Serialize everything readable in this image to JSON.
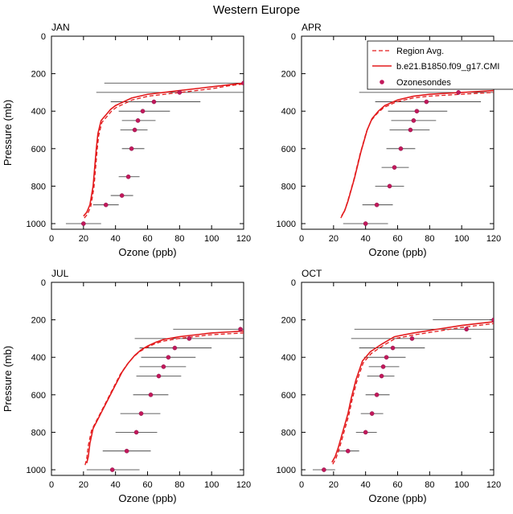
{
  "title": "Western Europe",
  "colors": {
    "model": "#e31a1c",
    "obs_marker": "#c2185b",
    "obs_bar": "#333333"
  },
  "chart_data": [
    {
      "type": "scatter",
      "panel": "JAN",
      "xlabel": "Ozone (ppb)",
      "ylabel": "Pressure (mb)",
      "xlim": [
        0,
        120
      ],
      "ylim": [
        1030,
        0
      ],
      "y_reversed": true,
      "xticks": [
        0,
        20,
        40,
        60,
        80,
        100,
        120
      ],
      "yticks": [
        0,
        200,
        400,
        600,
        800,
        1000
      ],
      "legend": null,
      "model": {
        "x": [
          20,
          22,
          24,
          25,
          26,
          27,
          28,
          29,
          31,
          34,
          37,
          40,
          50,
          60,
          70,
          80,
          90,
          100,
          110,
          120
        ],
        "y": [
          960,
          940,
          900,
          850,
          800,
          700,
          600,
          520,
          450,
          420,
          390,
          370,
          330,
          310,
          300,
          290,
          280,
          270,
          260,
          250
        ]
      },
      "region_avg": {
        "x": [
          20.5,
          22.5,
          24.5,
          25.5,
          26.5,
          27.5,
          28.5,
          29.5,
          31.5,
          34.5,
          37.5,
          40.5,
          50.5,
          60.5,
          70.5,
          80.5,
          90.5,
          100.5,
          110.5,
          120
        ],
        "y": [
          970,
          950,
          910,
          860,
          810,
          710,
          610,
          530,
          460,
          430,
          400,
          380,
          340,
          320,
          310,
          300,
          290,
          280,
          265,
          255
        ]
      },
      "ozonesondes": [
        {
          "p": 1000,
          "x": 20,
          "xmin": 9,
          "xmax": 31
        },
        {
          "p": 900,
          "x": 34,
          "xmin": 26,
          "xmax": 42
        },
        {
          "p": 850,
          "x": 44,
          "xmin": 37,
          "xmax": 51
        },
        {
          "p": 750,
          "x": 48,
          "xmin": 42,
          "xmax": 55
        },
        {
          "p": 600,
          "x": 50,
          "xmin": 44,
          "xmax": 58
        },
        {
          "p": 500,
          "x": 52,
          "xmin": 43,
          "xmax": 60
        },
        {
          "p": 450,
          "x": 54,
          "xmin": 44,
          "xmax": 65
        },
        {
          "p": 400,
          "x": 57,
          "xmin": 42,
          "xmax": 74
        },
        {
          "p": 350,
          "x": 64,
          "xmin": 37,
          "xmax": 93
        },
        {
          "p": 300,
          "x": 80,
          "xmin": 28,
          "xmax": 120
        },
        {
          "p": 250,
          "x": 120,
          "xmin": 33,
          "xmax": 120
        }
      ]
    },
    {
      "type": "scatter",
      "panel": "APR",
      "xlabel": "Ozone (ppb)",
      "ylabel": "",
      "xlim": [
        0,
        120
      ],
      "ylim": [
        1030,
        0
      ],
      "y_reversed": true,
      "xticks": [
        0,
        20,
        40,
        60,
        80,
        100,
        120
      ],
      "yticks": [
        0,
        200,
        400,
        600,
        800,
        1000
      ],
      "legend": {
        "position": "top-right",
        "entries": [
          "Region Avg.",
          "b.e21.B1850.f09_g17.CMI",
          "Ozonesondes"
        ]
      },
      "model": {
        "x": [
          25,
          27,
          29,
          31,
          33,
          35,
          37,
          39,
          41,
          44,
          48,
          52,
          60,
          70,
          80,
          90,
          100,
          110,
          120
        ],
        "y": [
          960,
          930,
          880,
          820,
          760,
          690,
          620,
          560,
          500,
          440,
          400,
          370,
          340,
          320,
          310,
          305,
          300,
          295,
          290
        ]
      },
      "region_avg": {
        "x": [
          24.5,
          26.5,
          28.5,
          30.5,
          32.5,
          34.5,
          36.5,
          38.5,
          40.5,
          43.5,
          47.5,
          51.5,
          59.5,
          69.5,
          79.5,
          89.5,
          99.5,
          109.5,
          120
        ],
        "y": [
          970,
          940,
          890,
          830,
          770,
          700,
          630,
          570,
          510,
          450,
          410,
          380,
          350,
          330,
          320,
          315,
          310,
          305,
          300
        ]
      },
      "ozonesondes": [
        {
          "p": 1000,
          "x": 40,
          "xmin": 26,
          "xmax": 54
        },
        {
          "p": 900,
          "x": 47,
          "xmin": 38,
          "xmax": 57
        },
        {
          "p": 800,
          "x": 55,
          "xmin": 46,
          "xmax": 64
        },
        {
          "p": 700,
          "x": 58,
          "xmin": 50,
          "xmax": 67
        },
        {
          "p": 600,
          "x": 62,
          "xmin": 53,
          "xmax": 71
        },
        {
          "p": 500,
          "x": 68,
          "xmin": 55,
          "xmax": 80
        },
        {
          "p": 450,
          "x": 70,
          "xmin": 56,
          "xmax": 84
        },
        {
          "p": 400,
          "x": 72,
          "xmin": 54,
          "xmax": 91
        },
        {
          "p": 350,
          "x": 78,
          "xmin": 46,
          "xmax": 112
        },
        {
          "p": 300,
          "x": 98,
          "xmin": 36,
          "xmax": 120
        }
      ]
    },
    {
      "type": "scatter",
      "panel": "JUL",
      "xlabel": "Ozone (ppb)",
      "ylabel": "Pressure (mb)",
      "xlim": [
        0,
        120
      ],
      "ylim": [
        1030,
        0
      ],
      "y_reversed": true,
      "xticks": [
        0,
        20,
        40,
        60,
        80,
        100,
        120
      ],
      "yticks": [
        0,
        200,
        400,
        600,
        800,
        1000
      ],
      "legend": null,
      "model": {
        "x": [
          22,
          23,
          24,
          26,
          29,
          32,
          35,
          38,
          41,
          44,
          48,
          52,
          56,
          60,
          65,
          70,
          80,
          90,
          100,
          110,
          120
        ],
        "y": [
          965,
          930,
          860,
          780,
          730,
          680,
          630,
          580,
          530,
          480,
          430,
          390,
          360,
          340,
          320,
          305,
          290,
          280,
          270,
          265,
          260
        ]
      },
      "region_avg": {
        "x": [
          21,
          22,
          23,
          25,
          28,
          31,
          34,
          37,
          40,
          43,
          47,
          51,
          55,
          59,
          64,
          69,
          79,
          89,
          99,
          109,
          120
        ],
        "y": [
          975,
          940,
          870,
          790,
          740,
          690,
          640,
          590,
          540,
          490,
          440,
          400,
          370,
          350,
          330,
          315,
          300,
          290,
          280,
          275,
          270
        ]
      },
      "ozonesondes": [
        {
          "p": 1000,
          "x": 38,
          "xmin": 22,
          "xmax": 55
        },
        {
          "p": 900,
          "x": 47,
          "xmin": 32,
          "xmax": 62
        },
        {
          "p": 800,
          "x": 53,
          "xmin": 40,
          "xmax": 66
        },
        {
          "p": 700,
          "x": 56,
          "xmin": 43,
          "xmax": 68
        },
        {
          "p": 600,
          "x": 62,
          "xmin": 51,
          "xmax": 73
        },
        {
          "p": 500,
          "x": 67,
          "xmin": 53,
          "xmax": 81
        },
        {
          "p": 450,
          "x": 70,
          "xmin": 55,
          "xmax": 84
        },
        {
          "p": 400,
          "x": 73,
          "xmin": 56,
          "xmax": 90
        },
        {
          "p": 350,
          "x": 77,
          "xmin": 55,
          "xmax": 100
        },
        {
          "p": 300,
          "x": 86,
          "xmin": 52,
          "xmax": 120
        },
        {
          "p": 250,
          "x": 118,
          "xmin": 76,
          "xmax": 120
        }
      ]
    },
    {
      "type": "scatter",
      "panel": "OCT",
      "xlabel": "Ozone (ppb)",
      "ylabel": "",
      "xlim": [
        0,
        120
      ],
      "ylim": [
        1030,
        0
      ],
      "y_reversed": true,
      "xticks": [
        0,
        20,
        40,
        60,
        80,
        100,
        120
      ],
      "yticks": [
        0,
        200,
        400,
        600,
        800,
        1000
      ],
      "legend": null,
      "model": {
        "x": [
          19,
          21,
          23,
          25,
          27,
          29,
          31,
          34,
          38,
          43,
          50,
          58,
          70,
          85,
          100,
          120
        ],
        "y": [
          960,
          930,
          880,
          820,
          760,
          700,
          620,
          520,
          420,
          370,
          330,
          290,
          270,
          250,
          230,
          210
        ]
      },
      "region_avg": {
        "x": [
          19.5,
          21.5,
          23.5,
          25.5,
          27.5,
          29.5,
          31.5,
          34.5,
          38.5,
          43.5,
          50.5,
          58.5,
          70.5,
          85.5,
          100.5,
          120
        ],
        "y": [
          970,
          940,
          890,
          830,
          770,
          710,
          630,
          530,
          430,
          380,
          340,
          300,
          280,
          260,
          240,
          220
        ]
      },
      "ozonesondes": [
        {
          "p": 1000,
          "x": 14,
          "xmin": 7,
          "xmax": 21
        },
        {
          "p": 900,
          "x": 29,
          "xmin": 22,
          "xmax": 36
        },
        {
          "p": 800,
          "x": 40,
          "xmin": 34,
          "xmax": 47
        },
        {
          "p": 700,
          "x": 44,
          "xmin": 37,
          "xmax": 51
        },
        {
          "p": 600,
          "x": 47,
          "xmin": 40,
          "xmax": 55
        },
        {
          "p": 500,
          "x": 50,
          "xmin": 41,
          "xmax": 58
        },
        {
          "p": 450,
          "x": 51,
          "xmin": 42,
          "xmax": 61
        },
        {
          "p": 400,
          "x": 53,
          "xmin": 39,
          "xmax": 65
        },
        {
          "p": 350,
          "x": 57,
          "xmin": 36,
          "xmax": 77
        },
        {
          "p": 300,
          "x": 69,
          "xmin": 31,
          "xmax": 106
        },
        {
          "p": 250,
          "x": 103,
          "xmin": 33,
          "xmax": 120
        },
        {
          "p": 200,
          "x": 120,
          "xmin": 82,
          "xmax": 120
        }
      ]
    }
  ]
}
